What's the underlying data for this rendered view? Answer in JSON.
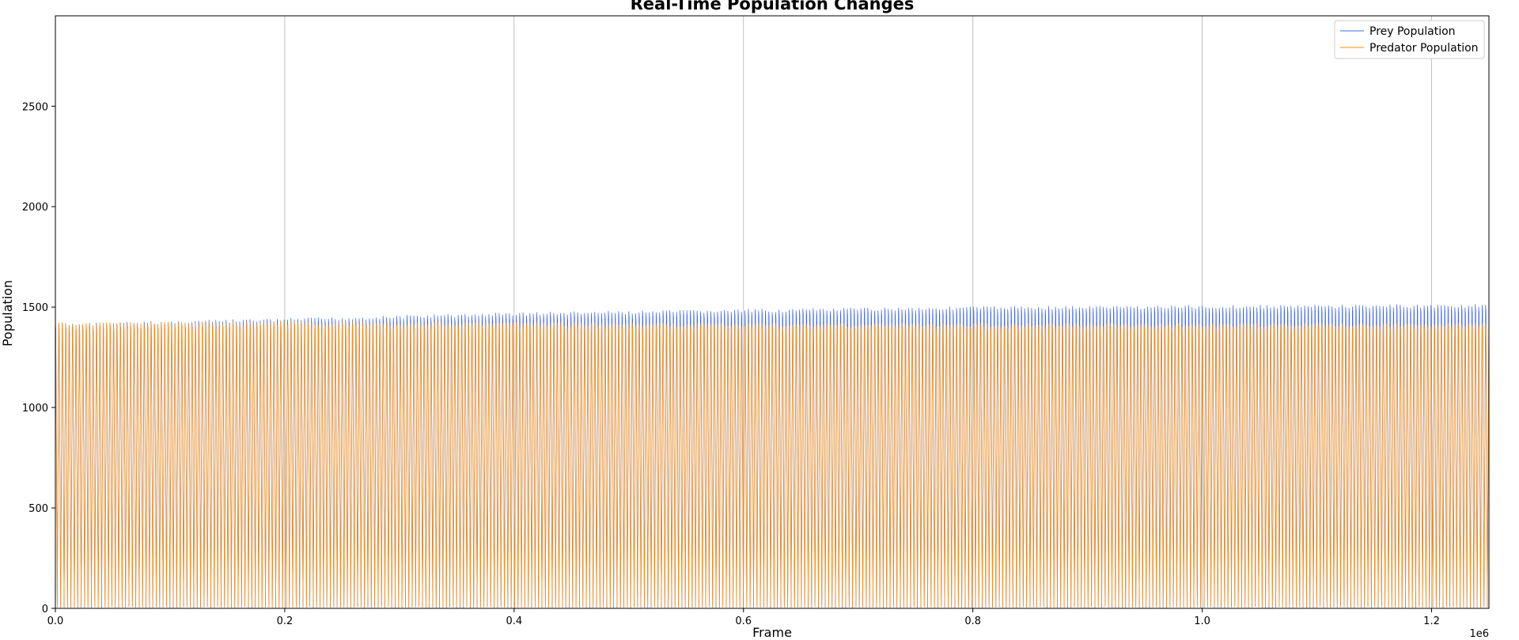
{
  "chart_data": {
    "type": "line",
    "title": "Real-Time Population Changes",
    "xlabel": "Frame",
    "ylabel": "Population",
    "x_offset_label": "1e6",
    "xlim": [
      0,
      1250000
    ],
    "ylim": [
      0,
      2950
    ],
    "x_ticks": [
      0,
      200000,
      400000,
      600000,
      800000,
      1000000,
      1200000
    ],
    "x_tick_labels": [
      "0.0",
      "0.2",
      "0.4",
      "0.6",
      "0.8",
      "1.0",
      "1.2"
    ],
    "y_ticks": [
      0,
      500,
      1000,
      1500,
      2000,
      2500
    ],
    "y_tick_labels": [
      "0",
      "500",
      "1000",
      "1500",
      "2000",
      "2500"
    ],
    "grid": "x-axis only",
    "legend_position": "top-right",
    "series": [
      {
        "name": "Prey Population",
        "color": "#4169e1",
        "pattern": "rapid oscillation between ~0 and a slowly rising peak",
        "x": [
          0,
          200000,
          400000,
          600000,
          800000,
          1000000,
          1250000
        ],
        "peak": [
          1420,
          1445,
          1475,
          1490,
          1505,
          1510,
          1515
        ]
      },
      {
        "name": "Predator Population",
        "color": "#ff8c00",
        "pattern": "rapid oscillation between ~0 and a near-constant peak",
        "x": [
          0,
          200000,
          400000,
          600000,
          800000,
          1000000,
          1250000
        ],
        "peak": [
          1425,
          1430,
          1425,
          1420,
          1420,
          1420,
          1420
        ]
      }
    ]
  }
}
